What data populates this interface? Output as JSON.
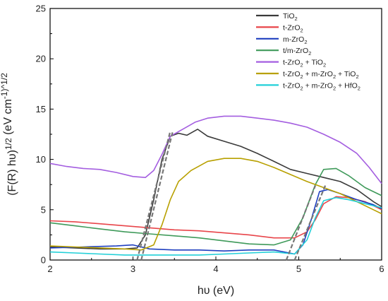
{
  "chart_data": {
    "type": "line",
    "xlabel": "hυ (eV)",
    "ylabel": "(F(R) hυ)^1/2 (eV cm^-1)^1/2",
    "xlim": [
      2,
      6
    ],
    "ylim": [
      0,
      25
    ],
    "x_ticks": [
      2,
      3,
      4,
      5,
      6
    ],
    "y_ticks": [
      0,
      5,
      10,
      15,
      20,
      25
    ],
    "grid": false,
    "legend_position": "top-right",
    "series": [
      {
        "name": "TiO2",
        "label_base": "TiO",
        "label_sub": "2",
        "color": "#3a3a3a",
        "points": [
          [
            2.0,
            1.3
          ],
          [
            2.3,
            1.2
          ],
          [
            2.6,
            1.1
          ],
          [
            2.9,
            1.1
          ],
          [
            3.05,
            1.2
          ],
          [
            3.15,
            2.5
          ],
          [
            3.25,
            6.0
          ],
          [
            3.35,
            10.0
          ],
          [
            3.45,
            12.3
          ],
          [
            3.55,
            12.6
          ],
          [
            3.65,
            12.4
          ],
          [
            3.78,
            13.0
          ],
          [
            3.9,
            12.3
          ],
          [
            4.1,
            11.8
          ],
          [
            4.3,
            11.3
          ],
          [
            4.5,
            10.6
          ],
          [
            4.7,
            9.8
          ],
          [
            4.9,
            9.0
          ],
          [
            5.1,
            8.6
          ],
          [
            5.3,
            8.2
          ],
          [
            5.5,
            7.8
          ],
          [
            5.7,
            7.0
          ],
          [
            5.9,
            5.8
          ],
          [
            6.0,
            5.3
          ]
        ]
      },
      {
        "name": "t-ZrO2",
        "label_base": "t-ZrO",
        "label_sub": "2",
        "color": "#e8454a",
        "points": [
          [
            2.0,
            3.9
          ],
          [
            2.3,
            3.8
          ],
          [
            2.6,
            3.6
          ],
          [
            2.9,
            3.4
          ],
          [
            3.2,
            3.2
          ],
          [
            3.5,
            3.0
          ],
          [
            3.8,
            2.9
          ],
          [
            4.1,
            2.7
          ],
          [
            4.4,
            2.5
          ],
          [
            4.7,
            2.2
          ],
          [
            4.95,
            2.2
          ],
          [
            5.1,
            2.8
          ],
          [
            5.2,
            4.0
          ],
          [
            5.3,
            5.6
          ],
          [
            5.45,
            6.3
          ],
          [
            5.6,
            6.2
          ],
          [
            5.8,
            5.8
          ],
          [
            6.0,
            5.0
          ]
        ]
      },
      {
        "name": "m-ZrO2",
        "label_base": "m-ZrO",
        "label_sub": "2",
        "color": "#1f3fbf",
        "points": [
          [
            2.0,
            1.2
          ],
          [
            2.4,
            1.3
          ],
          [
            2.8,
            1.4
          ],
          [
            3.0,
            1.5
          ],
          [
            3.2,
            1.1
          ],
          [
            3.5,
            1.0
          ],
          [
            3.8,
            1.0
          ],
          [
            4.1,
            0.9
          ],
          [
            4.4,
            1.0
          ],
          [
            4.7,
            1.0
          ],
          [
            4.95,
            0.6
          ],
          [
            5.05,
            1.5
          ],
          [
            5.15,
            4.0
          ],
          [
            5.25,
            6.8
          ],
          [
            5.35,
            7.0
          ],
          [
            5.5,
            6.6
          ],
          [
            5.7,
            6.0
          ],
          [
            5.9,
            5.5
          ],
          [
            6.0,
            5.1
          ]
        ]
      },
      {
        "name": "t/m-ZrO2",
        "label_base": "t/m-ZrO",
        "label_sub": "2",
        "color": "#3f9a5a",
        "points": [
          [
            2.0,
            3.7
          ],
          [
            2.3,
            3.4
          ],
          [
            2.6,
            3.1
          ],
          [
            2.9,
            2.8
          ],
          [
            3.2,
            2.6
          ],
          [
            3.5,
            2.4
          ],
          [
            3.8,
            2.2
          ],
          [
            4.1,
            1.9
          ],
          [
            4.4,
            1.6
          ],
          [
            4.7,
            1.5
          ],
          [
            4.9,
            2.0
          ],
          [
            5.05,
            4.2
          ],
          [
            5.2,
            7.5
          ],
          [
            5.3,
            9.0
          ],
          [
            5.45,
            9.1
          ],
          [
            5.6,
            8.4
          ],
          [
            5.8,
            7.2
          ],
          [
            6.0,
            6.4
          ]
        ]
      },
      {
        "name": "t-ZrO2 + TiO2",
        "label_base": "t-ZrO",
        "label_sub": "2",
        "label_rest": " + TiO",
        "label_sub2": "2",
        "color": "#a45ee0",
        "points": [
          [
            2.0,
            9.6
          ],
          [
            2.2,
            9.3
          ],
          [
            2.4,
            9.1
          ],
          [
            2.6,
            9.0
          ],
          [
            2.8,
            8.7
          ],
          [
            3.0,
            8.3
          ],
          [
            3.15,
            8.2
          ],
          [
            3.25,
            8.9
          ],
          [
            3.35,
            10.5
          ],
          [
            3.45,
            12.3
          ],
          [
            3.6,
            13.0
          ],
          [
            3.75,
            13.7
          ],
          [
            3.9,
            14.1
          ],
          [
            4.1,
            14.3
          ],
          [
            4.3,
            14.3
          ],
          [
            4.5,
            14.1
          ],
          [
            4.7,
            13.9
          ],
          [
            4.9,
            13.6
          ],
          [
            5.1,
            13.2
          ],
          [
            5.3,
            12.5
          ],
          [
            5.5,
            11.7
          ],
          [
            5.7,
            10.6
          ],
          [
            5.85,
            9.2
          ],
          [
            6.0,
            7.6
          ]
        ]
      },
      {
        "name": "t-ZrO2 + m-ZrO2 + TiO2",
        "label_base": "t-ZrO",
        "label_sub": "2",
        "label_rest": " + m-ZrO",
        "label_sub2": "2",
        "label_rest2": " + TiO",
        "label_sub3": "2",
        "color": "#b8a000",
        "points": [
          [
            2.0,
            1.4
          ],
          [
            2.3,
            1.3
          ],
          [
            2.6,
            1.2
          ],
          [
            2.9,
            1.1
          ],
          [
            3.1,
            1.0
          ],
          [
            3.25,
            1.5
          ],
          [
            3.35,
            3.5
          ],
          [
            3.45,
            6.0
          ],
          [
            3.55,
            7.8
          ],
          [
            3.7,
            8.9
          ],
          [
            3.9,
            9.8
          ],
          [
            4.1,
            10.1
          ],
          [
            4.3,
            10.1
          ],
          [
            4.5,
            9.8
          ],
          [
            4.7,
            9.2
          ],
          [
            4.9,
            8.5
          ],
          [
            5.1,
            7.8
          ],
          [
            5.3,
            7.2
          ],
          [
            5.5,
            6.6
          ],
          [
            5.7,
            5.8
          ],
          [
            5.9,
            5.0
          ],
          [
            6.0,
            4.6
          ]
        ]
      },
      {
        "name": "t-ZrO2 + m-ZrO2 + HfO2",
        "label_base": "t-ZrO",
        "label_sub": "2",
        "label_rest": " + m-ZrO",
        "label_sub2": "2",
        "label_rest2": " + HfO",
        "label_sub3": "2",
        "color": "#22d0d8",
        "points": [
          [
            2.0,
            0.8
          ],
          [
            2.3,
            0.7
          ],
          [
            2.6,
            0.6
          ],
          [
            2.9,
            0.5
          ],
          [
            3.2,
            0.5
          ],
          [
            3.5,
            0.5
          ],
          [
            3.8,
            0.5
          ],
          [
            4.1,
            0.6
          ],
          [
            4.4,
            0.7
          ],
          [
            4.7,
            0.8
          ],
          [
            4.95,
            0.6
          ],
          [
            5.1,
            2.0
          ],
          [
            5.2,
            4.2
          ],
          [
            5.3,
            5.9
          ],
          [
            5.45,
            6.2
          ],
          [
            5.6,
            6.0
          ],
          [
            5.8,
            5.6
          ],
          [
            6.0,
            5.2
          ]
        ]
      }
    ],
    "tangent_lines": [
      {
        "color": "#777777",
        "points": [
          [
            3.05,
            0.0
          ],
          [
            3.45,
            12.8
          ]
        ]
      },
      {
        "color": "#777777",
        "points": [
          [
            3.1,
            0.0
          ],
          [
            3.48,
            12.8
          ]
        ]
      },
      {
        "color": "#777777",
        "points": [
          [
            4.85,
            0.0
          ],
          [
            5.2,
            7.4
          ]
        ]
      },
      {
        "color": "#777777",
        "points": [
          [
            4.95,
            0.0
          ],
          [
            5.32,
            7.4
          ]
        ]
      }
    ]
  }
}
